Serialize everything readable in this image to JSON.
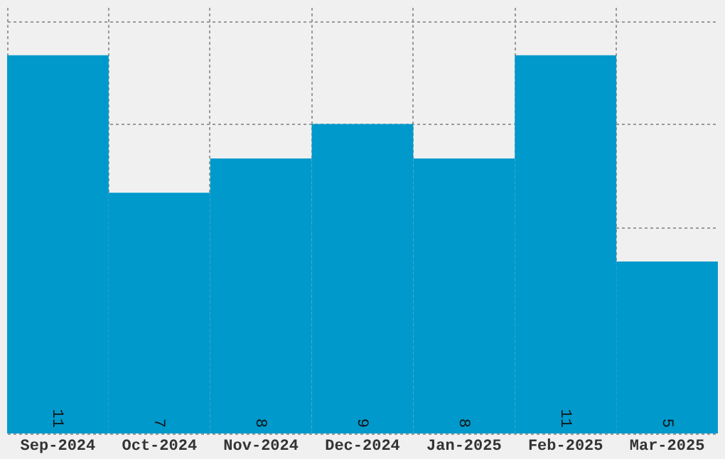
{
  "chart_data": {
    "type": "bar",
    "categories": [
      "Sep-2024",
      "Oct-2024",
      "Nov-2024",
      "Dec-2024",
      "Jan-2025",
      "Feb-2025",
      "Mar-2025"
    ],
    "values": [
      11,
      7,
      8,
      9,
      8,
      11,
      5
    ],
    "color": "#0099cc",
    "ylim": [
      0,
      12.4
    ],
    "yticks": [
      {
        "value": 0,
        "label": null
      },
      {
        "value": 3,
        "label": null
      },
      {
        "value": 6,
        "label": null
      },
      {
        "value": 9,
        "label": null
      },
      {
        "value": 12,
        "label": null
      }
    ],
    "tick_labels": "x",
    "grid": true,
    "data_labels": true
  }
}
